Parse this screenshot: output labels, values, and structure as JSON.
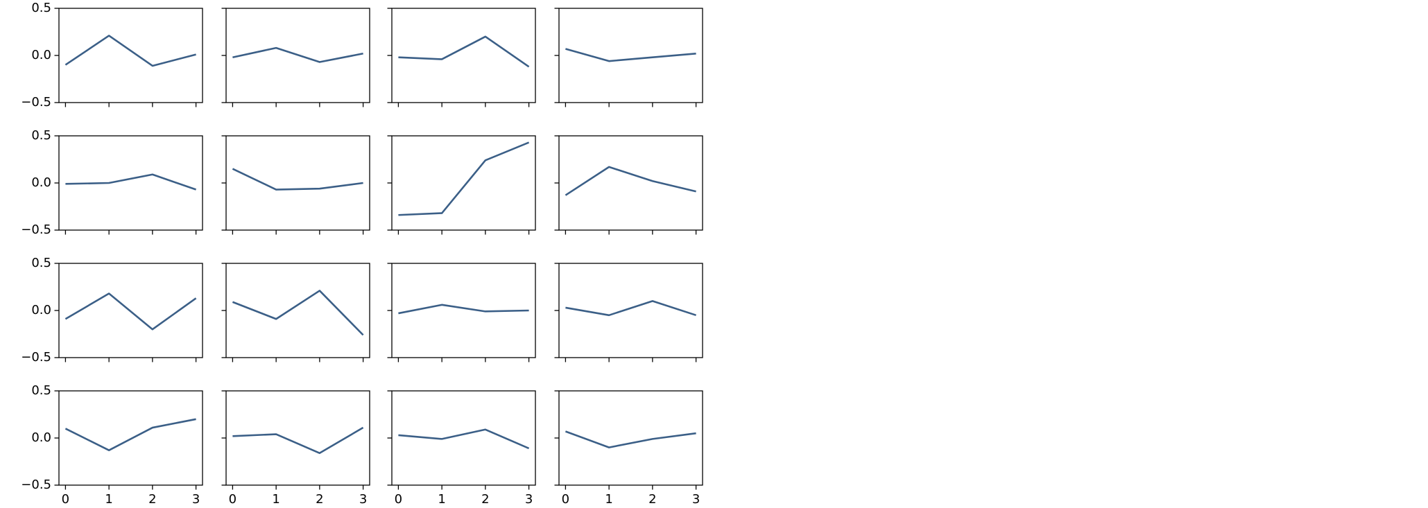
{
  "chart_data": [
    {
      "type": "line",
      "x": [
        0,
        1,
        2,
        3
      ],
      "values": [
        -0.1,
        0.21,
        -0.11,
        0.01
      ],
      "color": "#3b5f87",
      "xlim": [
        -0.15,
        3.15
      ],
      "ylim": [
        -0.5,
        0.5
      ],
      "xticks": [
        0,
        1,
        2,
        3
      ],
      "yticks": [
        {
          "value": -0.5,
          "label": "−0.5"
        },
        {
          "value": 0,
          "label": "0.0"
        },
        0.5
      ]
    },
    {
      "type": "line",
      "x": [
        0,
        1,
        2,
        3
      ],
      "values": [
        -0.02,
        0.08,
        -0.07,
        0.02
      ],
      "color": "#3b5f87",
      "xlim": [
        -0.15,
        3.15
      ],
      "ylim": [
        -0.5,
        0.5
      ],
      "xticks": [
        0,
        1,
        2,
        3
      ],
      "yticks": [
        {
          "value": -0.5,
          "label": "−0.5"
        },
        {
          "value": 0,
          "label": "0.0"
        },
        0.5
      ]
    },
    {
      "type": "line",
      "x": [
        0,
        1,
        2,
        3
      ],
      "values": [
        -0.02,
        -0.04,
        0.2,
        -0.12
      ],
      "color": "#3b5f87",
      "xlim": [
        -0.15,
        3.15
      ],
      "ylim": [
        -0.5,
        0.5
      ],
      "xticks": [
        0,
        1,
        2,
        3
      ],
      "yticks": [
        {
          "value": -0.5,
          "label": "−0.5"
        },
        {
          "value": 0,
          "label": "0.0"
        },
        0.5
      ]
    },
    {
      "type": "line",
      "x": [
        0,
        1,
        2,
        3
      ],
      "values": [
        0.07,
        -0.06,
        -0.02,
        0.02
      ],
      "color": "#3b5f87",
      "xlim": [
        -0.15,
        3.15
      ],
      "ylim": [
        -0.5,
        0.5
      ],
      "xticks": [
        0,
        1,
        2,
        3
      ],
      "yticks": [
        {
          "value": -0.5,
          "label": "−0.5"
        },
        {
          "value": 0,
          "label": "0.0"
        },
        0.5
      ]
    },
    {
      "type": "line",
      "x": [
        0,
        1,
        2,
        3
      ],
      "values": [
        -0.01,
        0,
        0.09,
        -0.07
      ],
      "color": "#3b5f87",
      "xlim": [
        -0.15,
        3.15
      ],
      "ylim": [
        -0.5,
        0.5
      ],
      "xticks": [
        0,
        1,
        2,
        3
      ],
      "yticks": [
        {
          "value": -0.5,
          "label": "−0.5"
        },
        {
          "value": 0,
          "label": "0.0"
        },
        0.5
      ]
    },
    {
      "type": "line",
      "x": [
        0,
        1,
        2,
        3
      ],
      "values": [
        0.15,
        -0.07,
        -0.06,
        0
      ],
      "color": "#3b5f87",
      "xlim": [
        -0.15,
        3.15
      ],
      "ylim": [
        -0.5,
        0.5
      ],
      "xticks": [
        0,
        1,
        2,
        3
      ],
      "yticks": [
        {
          "value": -0.5,
          "label": "−0.5"
        },
        {
          "value": 0,
          "label": "0.0"
        },
        0.5
      ]
    },
    {
      "type": "line",
      "x": [
        0,
        1,
        2,
        3
      ],
      "values": [
        -0.34,
        -0.32,
        0.24,
        0.43
      ],
      "color": "#3b5f87",
      "xlim": [
        -0.15,
        3.15
      ],
      "ylim": [
        -0.5,
        0.5
      ],
      "xticks": [
        0,
        1,
        2,
        3
      ],
      "yticks": [
        {
          "value": -0.5,
          "label": "−0.5"
        },
        {
          "value": 0,
          "label": "0.0"
        },
        0.5
      ]
    },
    {
      "type": "line",
      "x": [
        0,
        1,
        2,
        3
      ],
      "values": [
        -0.13,
        0.17,
        0.02,
        -0.09
      ],
      "color": "#3b5f87",
      "xlim": [
        -0.15,
        3.15
      ],
      "ylim": [
        -0.5,
        0.5
      ],
      "xticks": [
        0,
        1,
        2,
        3
      ],
      "yticks": [
        {
          "value": -0.5,
          "label": "−0.5"
        },
        {
          "value": 0,
          "label": "0.0"
        },
        0.5
      ]
    },
    {
      "type": "line",
      "x": [
        0,
        1,
        2,
        3
      ],
      "values": [
        -0.09,
        0.18,
        -0.2,
        0.13
      ],
      "color": "#3b5f87",
      "xlim": [
        -0.15,
        3.15
      ],
      "ylim": [
        -0.5,
        0.5
      ],
      "xticks": [
        0,
        1,
        2,
        3
      ],
      "yticks": [
        {
          "value": -0.5,
          "label": "−0.5"
        },
        {
          "value": 0,
          "label": "0.0"
        },
        0.5
      ]
    },
    {
      "type": "line",
      "x": [
        0,
        1,
        2,
        3
      ],
      "values": [
        0.09,
        -0.09,
        0.21,
        -0.26
      ],
      "color": "#3b5f87",
      "xlim": [
        -0.15,
        3.15
      ],
      "ylim": [
        -0.5,
        0.5
      ],
      "xticks": [
        0,
        1,
        2,
        3
      ],
      "yticks": [
        {
          "value": -0.5,
          "label": "−0.5"
        },
        {
          "value": 0,
          "label": "0.0"
        },
        0.5
      ]
    },
    {
      "type": "line",
      "x": [
        0,
        1,
        2,
        3
      ],
      "values": [
        -0.03,
        0.06,
        -0.01,
        0
      ],
      "color": "#3b5f87",
      "xlim": [
        -0.15,
        3.15
      ],
      "ylim": [
        -0.5,
        0.5
      ],
      "xticks": [
        0,
        1,
        2,
        3
      ],
      "yticks": [
        {
          "value": -0.5,
          "label": "−0.5"
        },
        {
          "value": 0,
          "label": "0.0"
        },
        0.5
      ]
    },
    {
      "type": "line",
      "x": [
        0,
        1,
        2,
        3
      ],
      "values": [
        0.03,
        -0.05,
        0.1,
        -0.05
      ],
      "color": "#3b5f87",
      "xlim": [
        -0.15,
        3.15
      ],
      "ylim": [
        -0.5,
        0.5
      ],
      "xticks": [
        0,
        1,
        2,
        3
      ],
      "yticks": [
        {
          "value": -0.5,
          "label": "−0.5"
        },
        {
          "value": 0,
          "label": "0.0"
        },
        0.5
      ]
    },
    {
      "type": "line",
      "x": [
        0,
        1,
        2,
        3
      ],
      "values": [
        0.1,
        -0.13,
        0.11,
        0.2
      ],
      "color": "#3b5f87",
      "xlim": [
        -0.15,
        3.15
      ],
      "ylim": [
        -0.5,
        0.5
      ],
      "xticks": [
        0,
        1,
        2,
        3
      ],
      "yticks": [
        {
          "value": -0.5,
          "label": "−0.5"
        },
        {
          "value": 0,
          "label": "0.0"
        },
        0.5
      ]
    },
    {
      "type": "line",
      "x": [
        0,
        1,
        2,
        3
      ],
      "values": [
        0.02,
        0.04,
        -0.16,
        0.11
      ],
      "color": "#3b5f87",
      "xlim": [
        -0.15,
        3.15
      ],
      "ylim": [
        -0.5,
        0.5
      ],
      "xticks": [
        0,
        1,
        2,
        3
      ],
      "yticks": [
        {
          "value": -0.5,
          "label": "−0.5"
        },
        {
          "value": 0,
          "label": "0.0"
        },
        0.5
      ]
    },
    {
      "type": "line",
      "x": [
        0,
        1,
        2,
        3
      ],
      "values": [
        0.03,
        -0.01,
        0.09,
        -0.11
      ],
      "color": "#3b5f87",
      "xlim": [
        -0.15,
        3.15
      ],
      "ylim": [
        -0.5,
        0.5
      ],
      "xticks": [
        0,
        1,
        2,
        3
      ],
      "yticks": [
        {
          "value": -0.5,
          "label": "−0.5"
        },
        {
          "value": 0,
          "label": "0.0"
        },
        0.5
      ]
    },
    {
      "type": "line",
      "x": [
        0,
        1,
        2,
        3
      ],
      "values": [
        0.07,
        -0.1,
        -0.01,
        0.05
      ],
      "color": "#3b5f87",
      "xlim": [
        -0.15,
        3.15
      ],
      "ylim": [
        -0.5,
        0.5
      ],
      "xticks": [
        0,
        1,
        2,
        3
      ],
      "yticks": [
        {
          "value": -0.5,
          "label": "−0.5"
        },
        {
          "value": 0,
          "label": "0.0"
        },
        0.5
      ]
    }
  ]
}
